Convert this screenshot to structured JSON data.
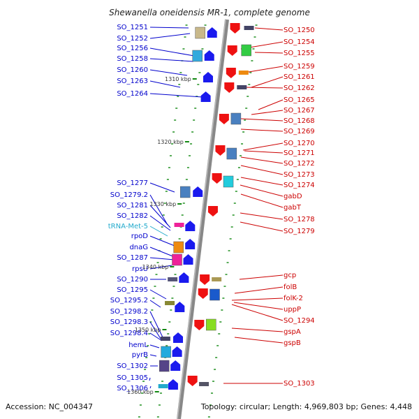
{
  "title": "Shewanella oneidensis MR-1, complete genome",
  "accession": "Accession: NC_004347",
  "topology": "Topology: circular; Length: 4,969,803 bp; Genes: 4,448",
  "colors": {
    "left_label": "#0000cc",
    "right_label": "#cc0000",
    "trna_label": "#22aacc",
    "axis": "#888888",
    "tick": "#118811"
  },
  "kbp_marks": [
    "1310 kbp",
    "1320 kbp",
    "1330 kbp",
    "1340 kbp",
    "1350 kbp",
    "1360 kbp"
  ],
  "left_genes": [
    "SO_1251",
    "SO_1252",
    "SO_1256",
    "SO_1258",
    "SO_1260",
    "SO_1263",
    "SO_1264",
    "SO_1277",
    "SO_1279.2",
    "SO_1281",
    "SO_1282",
    "tRNA-Met-5",
    "rpoD",
    "dnaG",
    "SO_1287",
    "rpsU",
    "SO_1290",
    "SO_1295",
    "SO_1295.2",
    "SO_1298.2",
    "SO_1298.3",
    "SO_1298.4",
    "hemL",
    "pyrB",
    "SO_1302",
    "SO_1305",
    "SO_1306"
  ],
  "right_genes": [
    "SO_1250",
    "SO_1254",
    "SO_1255",
    "SO_1259",
    "SO_1261",
    "SO_1262",
    "SO_1265",
    "SO_1267",
    "SO_1268",
    "SO_1269",
    "SO_1270",
    "SO_1271",
    "SO_1272",
    "SO_1273",
    "SO_1274",
    "gabD",
    "gabT",
    "SO_1278",
    "SO_1279",
    "gcp",
    "folB",
    "folK-2",
    "uppP",
    "SO_1294",
    "gspA",
    "gspB",
    "SO_1303"
  ]
}
